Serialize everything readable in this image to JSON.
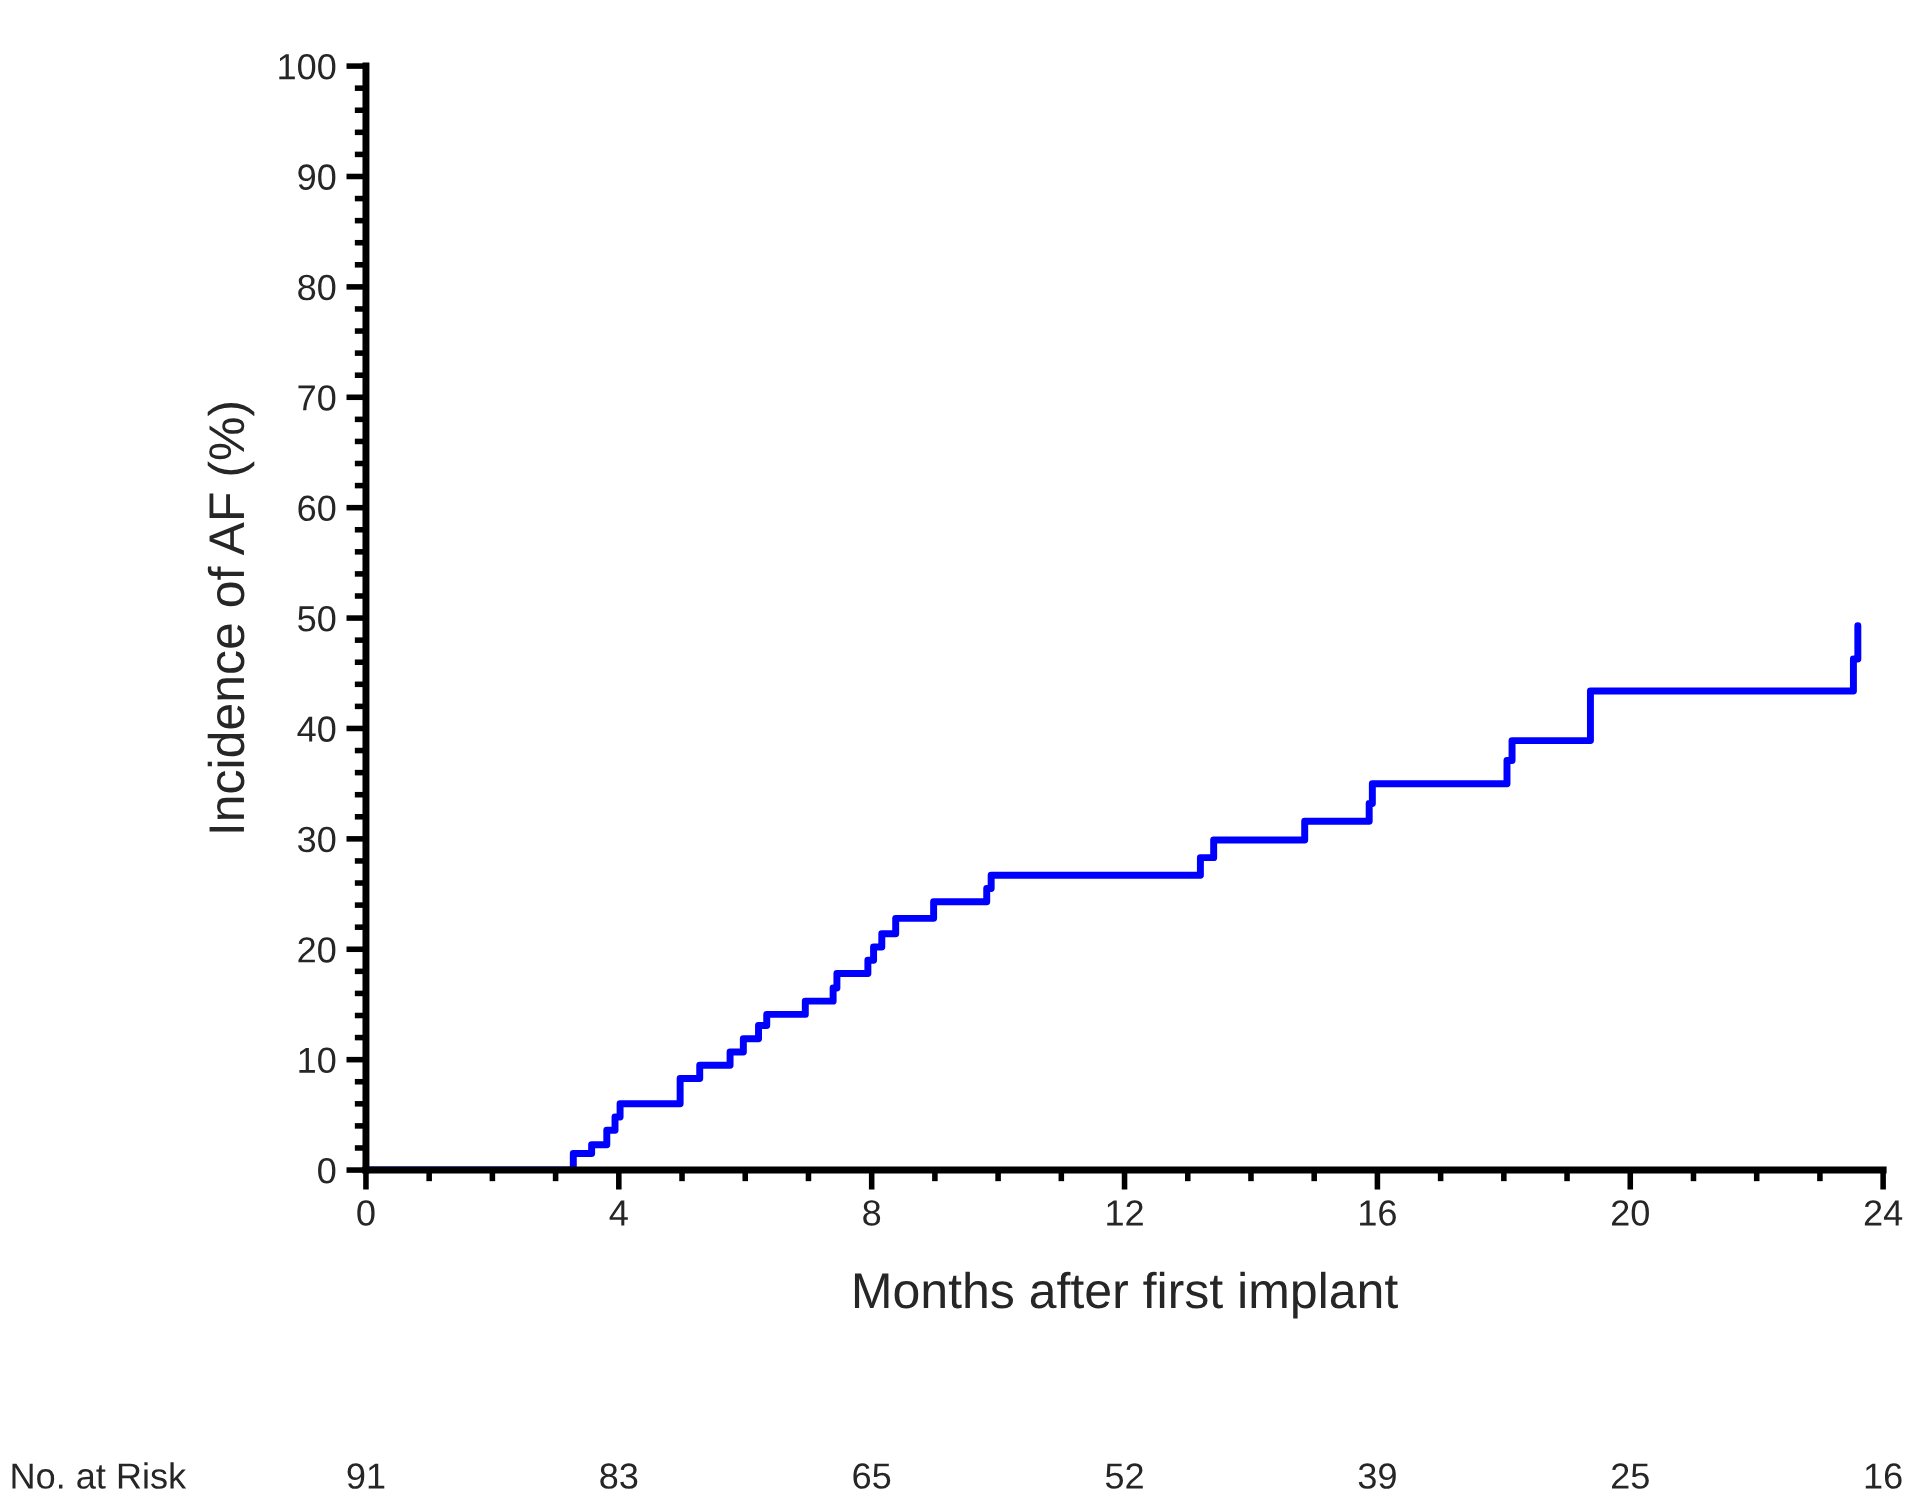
{
  "chart_data": {
    "type": "step",
    "xlabel": "Months after first implant",
    "ylabel": "Incidence of AF (%)",
    "series": [
      {
        "color": "#0000ff",
        "x": [
          0,
          3.28,
          3.57,
          3.81,
          3.94,
          4.02,
          4.97,
          5.28,
          5.76,
          5.97,
          6.21,
          6.34,
          6.95,
          7.39,
          7.45,
          7.94,
          8.03,
          8.16,
          8.38,
          8.98,
          9.82,
          9.89,
          13.2,
          13.41,
          14.85,
          15.87,
          15.92,
          18.05,
          18.13,
          19.37,
          23.53,
          23.6
        ],
        "values": [
          0,
          1.5,
          2.3,
          3.6,
          4.8,
          6.0,
          8.3,
          9.5,
          10.7,
          11.9,
          13.1,
          14.1,
          15.3,
          16.5,
          17.8,
          19.0,
          20.2,
          21.4,
          22.8,
          24.3,
          25.5,
          26.7,
          28.3,
          29.9,
          31.6,
          33.2,
          35.0,
          37.1,
          38.9,
          43.4,
          46.3,
          49.3
        ]
      }
    ],
    "xlim": [
      0,
      24
    ],
    "xticks": [
      0,
      4,
      8,
      12,
      16,
      20,
      24
    ],
    "ylim": [
      0,
      100
    ],
    "yticks": [
      0,
      10,
      20,
      30,
      40,
      50,
      60,
      70,
      80,
      90,
      100
    ],
    "grid": false,
    "marker": "none",
    "line_style": "solid",
    "annotations": [
      "No. at Risk",
      "91",
      "83",
      "65",
      "52",
      "39",
      "25",
      "16"
    ]
  }
}
